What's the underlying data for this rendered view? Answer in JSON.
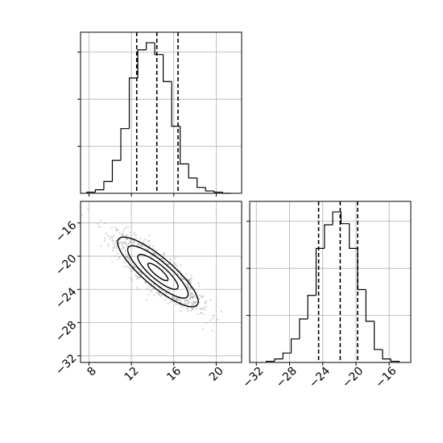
{
  "chart_data": {
    "type": "corner",
    "parameters": [
      {
        "label": "",
        "range": [
          7.2,
          22.4
        ],
        "ticks": [
          8,
          12,
          16,
          20
        ],
        "tick_labels": [
          "8",
          "12",
          "16",
          "20"
        ],
        "quantiles": [
          12.5,
          14.4,
          16.4
        ],
        "hist": {
          "bin_edges": [
            7.8,
            8.6,
            9.4,
            10.2,
            11.0,
            11.8,
            12.6,
            13.4,
            14.2,
            15.0,
            15.8,
            16.6,
            17.4,
            18.2,
            19.0,
            19.8,
            20.6,
            21.4
          ],
          "counts": [
            1,
            3,
            10,
            28,
            55,
            98,
            122,
            128,
            118,
            95,
            57,
            25,
            13,
            5,
            2,
            1,
            0
          ]
        }
      },
      {
        "label": "",
        "range": [
          -32.8,
          -13.4
        ],
        "ticks": [
          -32,
          -28,
          -24,
          -20,
          -16
        ],
        "tick_labels": [
          "−32",
          "−28",
          "−24",
          "−20",
          "−16"
        ],
        "quantiles": [
          -24.5,
          -21.9,
          -19.8
        ],
        "hist": {
          "bin_edges": [
            -30.8,
            -29.8,
            -28.8,
            -27.8,
            -26.8,
            -25.8,
            -24.8,
            -23.8,
            -22.8,
            -21.8,
            -20.8,
            -19.8,
            -18.8,
            -17.8,
            -16.8,
            -15.8,
            -14.8
          ],
          "counts": [
            1,
            3,
            8,
            20,
            37,
            57,
            97,
            117,
            128,
            118,
            97,
            62,
            35,
            11,
            3,
            1
          ]
        }
      }
    ],
    "joint": {
      "x_param": 0,
      "y_param": 1,
      "correlation": -0.85,
      "mean": [
        14.5,
        -21.9
      ],
      "std": [
        1.9,
        2.1
      ],
      "grid": "on",
      "contour_levels": 4
    },
    "title": "",
    "grid": "on"
  }
}
